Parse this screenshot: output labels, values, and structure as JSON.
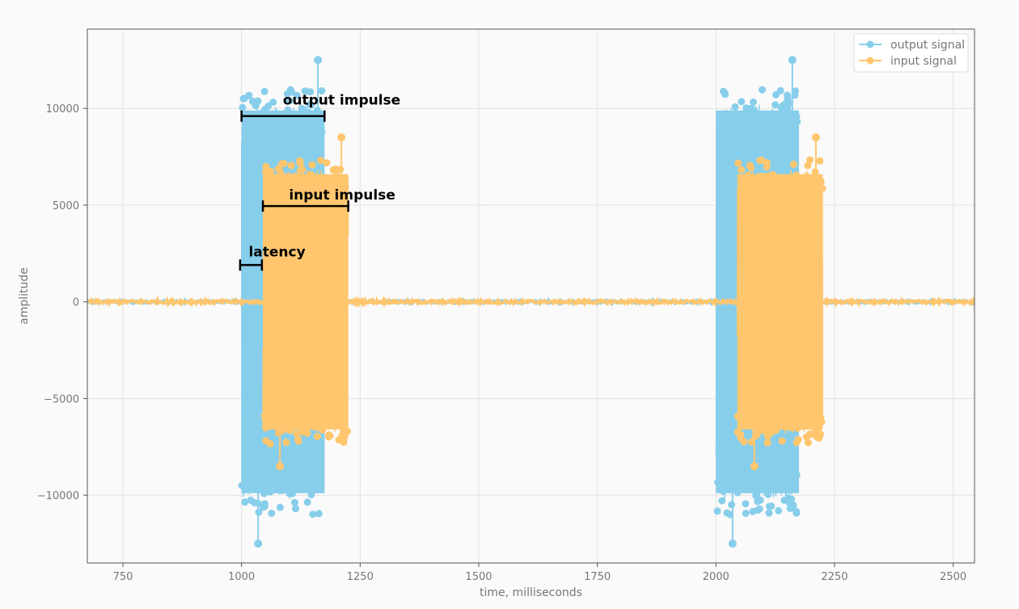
{
  "chart_data": {
    "type": "line",
    "title": "",
    "xlabel": "time, milliseconds",
    "ylabel": "amplitude",
    "xlim": [
      675,
      2545
    ],
    "ylim": [
      -13500,
      14100
    ],
    "xticks": [
      750,
      1000,
      1250,
      1500,
      1750,
      2000,
      2250,
      2500
    ],
    "xtick_labels": [
      "750",
      "1000",
      "1250",
      "1500",
      "1750",
      "2000",
      "2250",
      "2500"
    ],
    "yticks": [
      -10000,
      -5000,
      0,
      5000,
      10000
    ],
    "ytick_labels": [
      "−10000",
      "−5000",
      "0",
      "5000",
      "10000"
    ],
    "grid": true,
    "legend_position": "top-right",
    "colors": {
      "output": "#87ceeb",
      "input": "#ffc66e",
      "annotation": "#000000"
    },
    "series": [
      {
        "name": "output signal",
        "marker": "circle",
        "bursts": [
          {
            "start": 1000,
            "end": 1175,
            "peak": 12500,
            "typical": 10200
          },
          {
            "start": 2000,
            "end": 2175,
            "peak": 12500,
            "typical": 10200
          }
        ],
        "baseline_noise": 60
      },
      {
        "name": "input signal",
        "marker": "circle",
        "bursts": [
          {
            "start": 1045,
            "end": 1225,
            "peak": 8500,
            "typical": 6800
          },
          {
            "start": 2045,
            "end": 2225,
            "peak": 8500,
            "typical": 6800
          }
        ],
        "baseline_noise": 80
      }
    ],
    "annotations": [
      {
        "text": "output impulse",
        "x_start": 1000,
        "x_end": 1175,
        "y": 9600,
        "text_x": 1087,
        "text_y": 10200
      },
      {
        "text": "input impulse",
        "x_start": 1045,
        "x_end": 1225,
        "y": 4950,
        "text_x": 1100,
        "text_y": 5300
      },
      {
        "text": "latency",
        "x_start": 997,
        "x_end": 1043,
        "y": 1900,
        "text_x": 1015,
        "text_y": 2350
      }
    ]
  }
}
